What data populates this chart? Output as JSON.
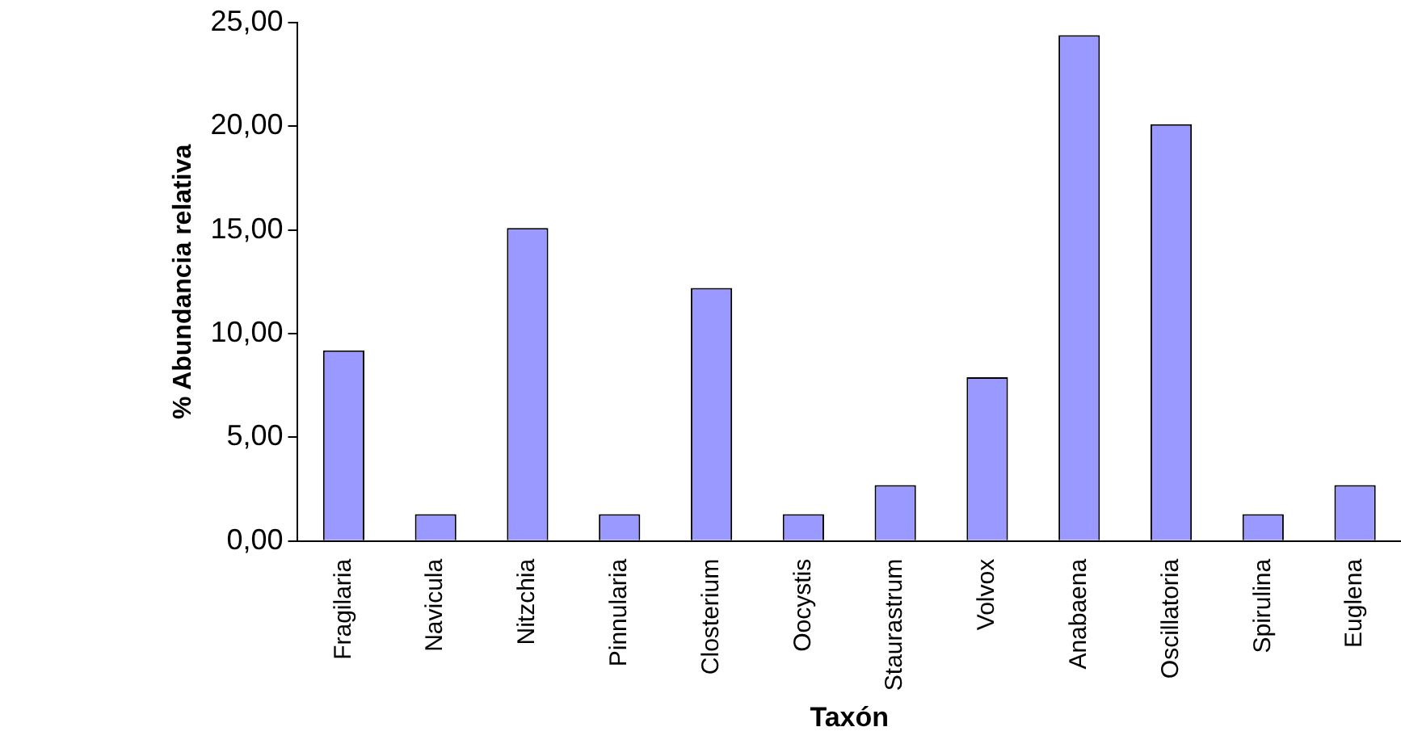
{
  "chart_data": {
    "type": "bar",
    "xlabel": "Taxón",
    "ylabel": "% Abundancia relativa",
    "categories": [
      "Fragilaria",
      "Navicula",
      "Nitzchia",
      "Pinnularia",
      "Closterium",
      "Oocystis",
      "Staurastrum",
      "Volvox",
      "Anabaena",
      "Oscillatoria",
      "Spirulina",
      "Euglena"
    ],
    "values": [
      9.2,
      1.3,
      15.1,
      1.3,
      12.2,
      1.3,
      2.7,
      7.9,
      24.4,
      20.1,
      1.3,
      2.7
    ],
    "color": "#9999ff",
    "ylim": [
      0,
      25
    ],
    "yticks": [
      {
        "value": 0,
        "label": "0,00"
      },
      {
        "value": 5,
        "label": "5,00"
      },
      {
        "value": 10,
        "label": "10,00"
      },
      {
        "value": 15,
        "label": "15,00"
      },
      {
        "value": 20,
        "label": "20,00"
      },
      {
        "value": 25,
        "label": "25,00"
      }
    ],
    "grid": false,
    "legend": false
  }
}
